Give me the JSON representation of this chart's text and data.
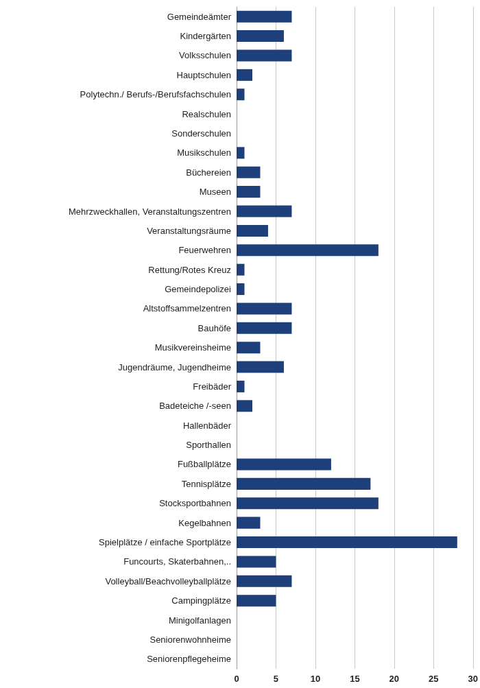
{
  "chart_data": {
    "type": "bar",
    "orientation": "horizontal",
    "categories": [
      "Gemeindeämter",
      "Kindergärten",
      "Volksschulen",
      "Hauptschulen",
      "Polytechn./ Berufs-/Berufsfachschulen",
      "Realschulen",
      "Sonderschulen",
      "Musikschulen",
      "Büchereien",
      "Museen",
      "Mehrzweckhallen, Veranstaltungszentren",
      "Veranstaltungsräume",
      "Feuerwehren",
      "Rettung/Rotes Kreuz",
      "Gemeindepolizei",
      "Altstoffsammelzentren",
      "Bauhöfe",
      "Musikvereinsheime",
      "Jugendräume, Jugendheime",
      "Freibäder",
      "Badeteiche /-seen",
      "Hallenbäder",
      "Sporthallen",
      "Fußballplätze",
      "Tennisplätze",
      "Stocksportbahnen",
      "Kegelbahnen",
      "Spielplätze / einfache Sportplätze",
      "Funcourts, Skaterbahnen,..",
      "Volleyball/Beachvolleyballplätze",
      "Campingplätze",
      "Minigolfanlagen",
      "Seniorenwohnheime",
      "Seniorenpflegeheime"
    ],
    "values": [
      7,
      6,
      7,
      2,
      1,
      0,
      0,
      1,
      3,
      3,
      7,
      4,
      18,
      1,
      1,
      7,
      7,
      3,
      6,
      1,
      2,
      0,
      0,
      12,
      17,
      18,
      3,
      28,
      5,
      7,
      5,
      0,
      0,
      0
    ],
    "color": "#1f3f7a",
    "xlim": [
      0,
      30
    ],
    "xticks": [
      0,
      5,
      10,
      15,
      20,
      25,
      30
    ],
    "grid": "x"
  }
}
